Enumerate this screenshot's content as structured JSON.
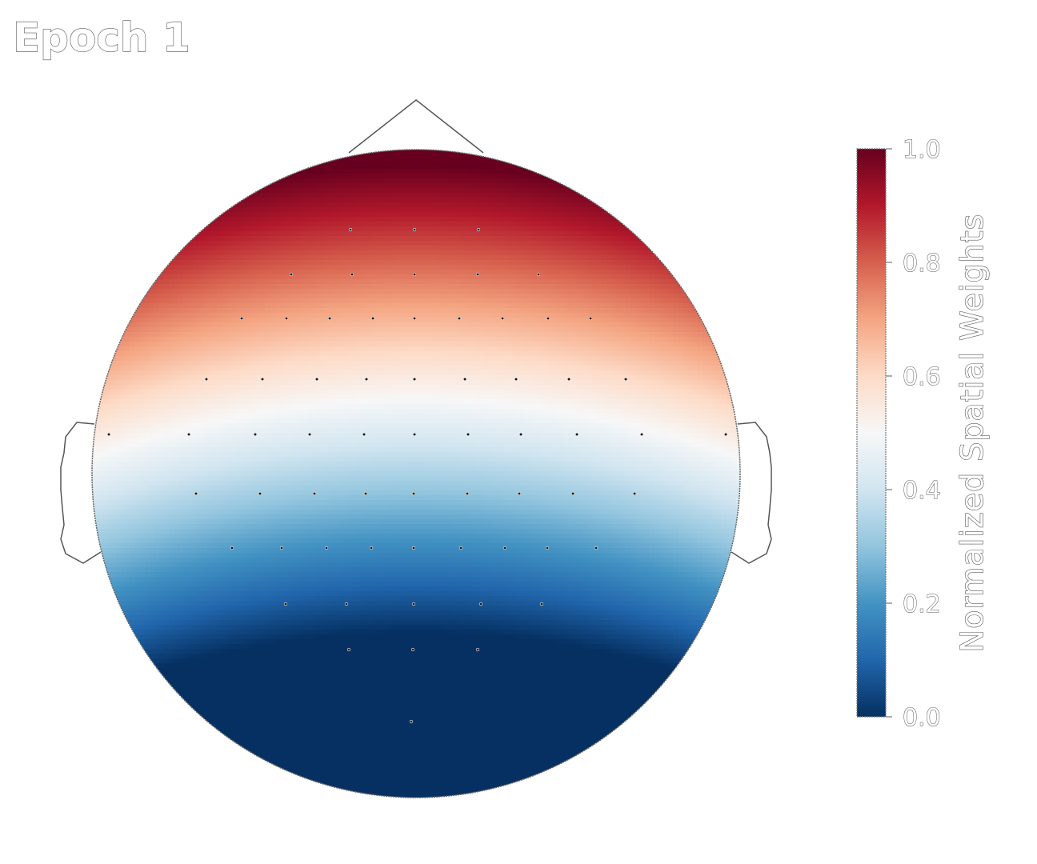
{
  "title": "Epoch 1",
  "chart_data": {
    "type": "heatmap",
    "title": "Epoch 1",
    "colormap": "RdBu_r",
    "color_stops": [
      "#053061",
      "#2166ac",
      "#4393c3",
      "#92c5de",
      "#d1e5f0",
      "#f7f7f7",
      "#fddbc7",
      "#f4a582",
      "#d6604d",
      "#b2182b",
      "#67001f"
    ],
    "colorbar": {
      "label": "Normalized Spatial Weights",
      "range": [
        0.0,
        1.0
      ],
      "ticks": [
        {
          "value": 0.0,
          "label": "0.0"
        },
        {
          "value": 0.2,
          "label": "0.2"
        },
        {
          "value": 0.4,
          "label": "0.4"
        },
        {
          "value": 0.6,
          "label": "0.6"
        },
        {
          "value": 0.8,
          "label": "0.8"
        },
        {
          "value": 1.0,
          "label": "1.0"
        }
      ]
    },
    "sensors_count": 64
  }
}
